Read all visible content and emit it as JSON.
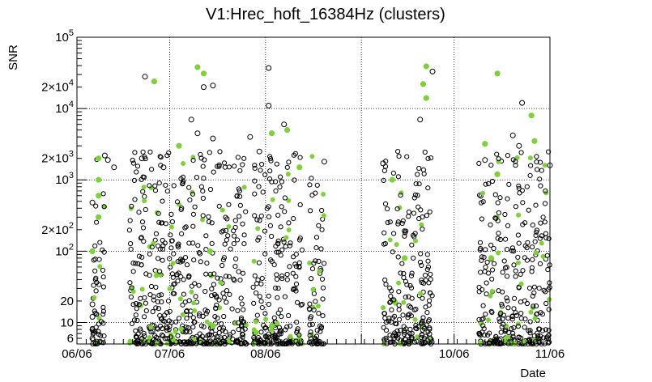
{
  "chart_data": {
    "type": "scatter",
    "title": "V1:Hrec_hoft_16384Hz (clusters)",
    "xlabel": "Date",
    "ylabel": "SNR",
    "yscale": "log",
    "ylim": [
      5,
      100000
    ],
    "xlim": [
      "2019-06-06",
      "2019-11-06"
    ],
    "grid": true,
    "legend": "none",
    "x_ticks": [
      {
        "date": "2019-06-06",
        "label": "06/06"
      },
      {
        "date": "2019-07-06",
        "label": "07/06"
      },
      {
        "date": "2019-08-06",
        "label": "08/06"
      },
      {
        "date": "2019-10-06",
        "label": "10/06"
      },
      {
        "date": "2019-11-06",
        "label": "11/06"
      }
    ],
    "x_grid_dates": [
      "2019-06-06",
      "2019-07-06",
      "2019-08-06",
      "2019-09-06",
      "2019-10-06",
      "2019-11-06"
    ],
    "y_ticks": [
      {
        "value": 6,
        "text": "6"
      },
      {
        "value": 10,
        "text": "10"
      },
      {
        "value": 20,
        "text": "20"
      },
      {
        "value": 100,
        "base": "10",
        "sup": "2"
      },
      {
        "value": 200,
        "base": "2×10",
        "sup": "2"
      },
      {
        "value": 1000,
        "base": "10",
        "sup": "3"
      },
      {
        "value": 2000,
        "base": "2×10",
        "sup": "3"
      },
      {
        "value": 10000,
        "base": "10",
        "sup": "4"
      },
      {
        "value": 20000,
        "base": "2×10",
        "sup": "4"
      },
      {
        "value": 100000,
        "base": "10",
        "sup": "5"
      }
    ],
    "y_grid_values": [
      10,
      100,
      1000,
      10000
    ],
    "colors": {
      "open_marker": "#000000",
      "highlight_marker": "#7fd13b"
    },
    "observing_segments": [
      {
        "start": "2019-06-11",
        "end": "2019-06-15"
      },
      {
        "start": "2019-06-23",
        "end": "2019-07-31"
      },
      {
        "start": "2019-08-02",
        "end": "2019-08-18"
      },
      {
        "start": "2019-08-20",
        "end": "2019-08-25"
      },
      {
        "start": "2019-09-13",
        "end": "2019-09-29"
      },
      {
        "start": "2019-10-14",
        "end": "2019-11-06"
      }
    ],
    "series": [
      {
        "marker": "open-circle",
        "points": [
          {
            "x": "2019-06-28",
            "y": 28000
          },
          {
            "x": "2019-07-13",
            "y": 7000
          },
          {
            "x": "2019-07-15",
            "y": 4500
          },
          {
            "x": "2019-07-20",
            "y": 3800
          },
          {
            "x": "2019-07-17",
            "y": 20000
          },
          {
            "x": "2019-07-20",
            "y": 21000
          },
          {
            "x": "2019-08-07",
            "y": 11000
          },
          {
            "x": "2019-08-07",
            "y": 37000
          },
          {
            "x": "2019-08-01",
            "y": 4000
          },
          {
            "x": "2019-08-12",
            "y": 6000
          },
          {
            "x": "2019-09-29",
            "y": 33000
          },
          {
            "x": "2019-09-25",
            "y": 7000
          },
          {
            "x": "2019-10-28",
            "y": 12000
          },
          {
            "x": "2019-10-25",
            "y": 4200
          },
          {
            "x": "2019-10-27",
            "y": 3000
          },
          {
            "x": "2019-06-15",
            "y": 2200
          },
          {
            "x": "2019-06-16",
            "y": 1900
          },
          {
            "x": "2019-06-27",
            "y": 2000
          },
          {
            "x": "2019-06-18",
            "y": 1500
          },
          {
            "x": "2019-07-04",
            "y": 1500
          },
          {
            "x": "2019-08-04",
            "y": 2500
          },
          {
            "x": "2019-08-25",
            "y": 1800
          },
          {
            "x": "2019-09-13",
            "y": 1700
          },
          {
            "x": "2019-10-16",
            "y": 1900
          },
          {
            "x": "2019-11-06",
            "y": 1600
          },
          {
            "x": "2019-06-11",
            "y": 480
          },
          {
            "x": "2019-06-11",
            "y": 18
          },
          {
            "x": "2019-06-11",
            "y": 12
          },
          {
            "x": "2019-06-11",
            "y": 8
          },
          {
            "x": "2019-06-11",
            "y": 6
          }
        ]
      },
      {
        "marker": "filled-circle",
        "points": [
          {
            "x": "2019-07-15",
            "y": 38000
          },
          {
            "x": "2019-07-17",
            "y": 31000
          },
          {
            "x": "2019-07-01",
            "y": 24000
          },
          {
            "x": "2019-09-27",
            "y": 39000
          },
          {
            "x": "2019-09-26",
            "y": 22000
          },
          {
            "x": "2019-09-27",
            "y": 14000
          },
          {
            "x": "2019-10-20",
            "y": 31000
          },
          {
            "x": "2019-10-31",
            "y": 8000
          },
          {
            "x": "2019-10-16",
            "y": 3200
          },
          {
            "x": "2019-11-01",
            "y": 3500
          },
          {
            "x": "2019-06-13",
            "y": 2000
          },
          {
            "x": "2019-06-13",
            "y": 1000
          },
          {
            "x": "2019-06-13",
            "y": 600
          },
          {
            "x": "2019-06-13",
            "y": 300
          },
          {
            "x": "2019-07-09",
            "y": 3000
          },
          {
            "x": "2019-08-08",
            "y": 4500
          },
          {
            "x": "2019-08-13",
            "y": 5000
          },
          {
            "x": "2019-08-17",
            "y": 1500
          },
          {
            "x": "2019-09-16",
            "y": 1000
          },
          {
            "x": "2019-10-20",
            "y": 1200
          },
          {
            "x": "2019-06-11",
            "y": 100
          },
          {
            "x": "2019-07-19",
            "y": 100
          },
          {
            "x": "2019-09-20",
            "y": 80
          },
          {
            "x": "2019-10-18",
            "y": 80
          },
          {
            "x": "2019-08-08",
            "y": 9
          },
          {
            "x": "2019-07-20",
            "y": 9
          }
        ]
      }
    ]
  }
}
